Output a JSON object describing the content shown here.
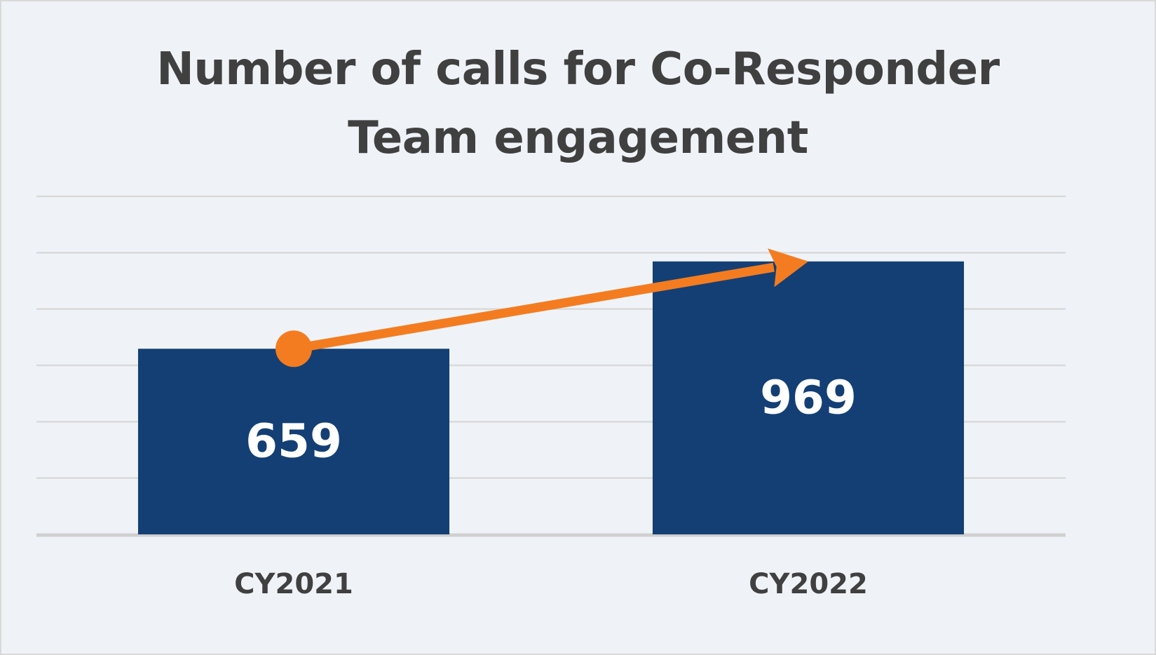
{
  "chart_data": {
    "type": "bar",
    "title": [
      "Number of calls for Co-Responder",
      "Team engagement"
    ],
    "categories": [
      "CY2021",
      "CY2022"
    ],
    "values": [
      659,
      969
    ],
    "data_labels": [
      "659",
      "969"
    ],
    "ylim": [
      0,
      1200
    ],
    "ytick_step": 200,
    "grid": true,
    "legend": "none",
    "xlabel": "",
    "ylabel": "",
    "annotation": "trend-arrow",
    "colors": {
      "bar": "#133f75",
      "arrow": "#f47c20",
      "background": "#eff3f8",
      "grid": "#d9d9d9"
    }
  }
}
